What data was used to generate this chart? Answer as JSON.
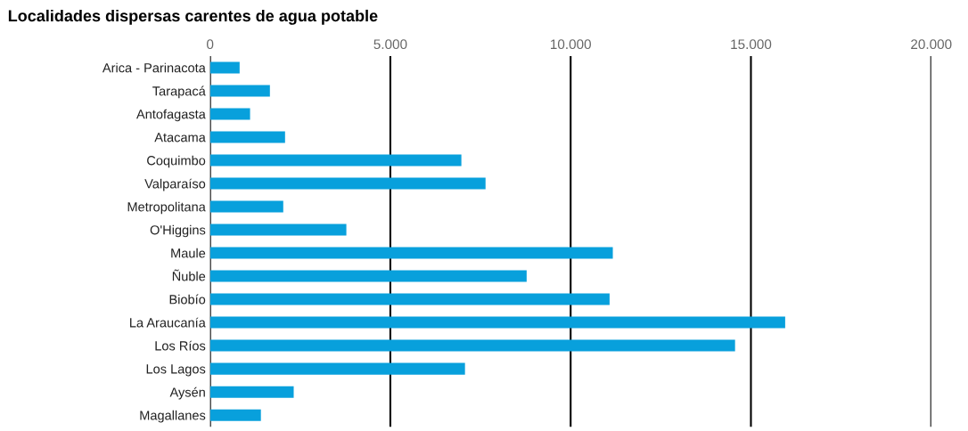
{
  "chart_data": {
    "type": "bar",
    "orientation": "horizontal",
    "title": "Localidades dispersas carentes de agua potable",
    "categories": [
      "Arica - Parinacota",
      "Tarapacá",
      "Antofagasta",
      "Atacama",
      "Coquimbo",
      "Valparaíso",
      "Metropolitana",
      "O'Higgins",
      "Maule",
      "Ñuble",
      "Biobío",
      "La Araucanía",
      "Los Ríos",
      "Los Lagos",
      "Aysén",
      "Magallanes"
    ],
    "values": [
      820,
      1660,
      1110,
      2080,
      6970,
      7640,
      2030,
      3780,
      11170,
      8780,
      11080,
      15950,
      14560,
      7070,
      2320,
      1410
    ],
    "color": "#08a0dc",
    "xlim": [
      0,
      20000
    ],
    "xticks": [
      0,
      {
        "value": 5000,
        "label": "5.000"
      },
      {
        "value": 10000,
        "label": "10.000"
      },
      {
        "value": 15000,
        "label": "15.000"
      },
      {
        "value": 20000,
        "label": "20.000"
      }
    ],
    "grid": "x"
  }
}
